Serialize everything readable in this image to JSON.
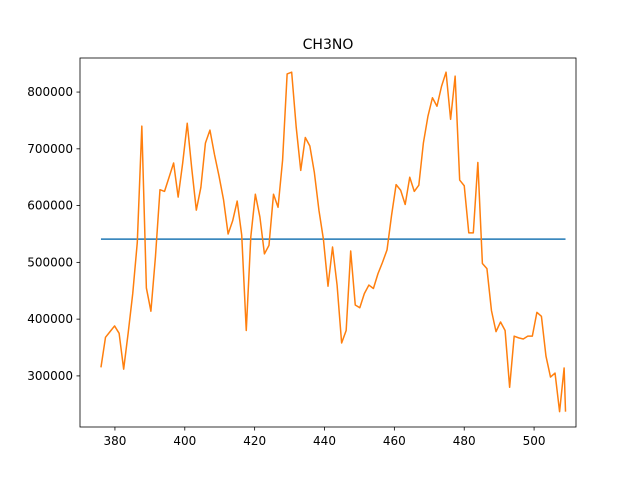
{
  "chart_data": {
    "type": "line",
    "title": "CH3NO",
    "xlabel": "",
    "ylabel": "",
    "xlim": [
      370,
      512
    ],
    "ylim": [
      210000,
      860000
    ],
    "x_ticks": [
      380,
      400,
      420,
      440,
      460,
      480,
      500
    ],
    "y_ticks": [
      300000,
      400000,
      500000,
      600000,
      700000,
      800000
    ],
    "x_tick_labels": [
      "380",
      "400",
      "420",
      "440",
      "460",
      "480",
      "500"
    ],
    "y_tick_labels": [
      "300000",
      "400000",
      "500000",
      "600000",
      "700000",
      "800000"
    ],
    "grid": false,
    "series": [
      {
        "color": "#1f77b4",
        "x": [
          376,
          509
        ],
        "y": [
          541000,
          541000
        ]
      },
      {
        "color": "#ff7f0e",
        "x": [
          376,
          377.3,
          378.6,
          379.9,
          381.2,
          382.5,
          383.8,
          385.1,
          386.4,
          387.7,
          389,
          390.3,
          391.6,
          392.9,
          394.2,
          395.5,
          396.8,
          398.1,
          399.4,
          400.7,
          402,
          403.3,
          404.6,
          405.9,
          407.2,
          408.5,
          409.8,
          411.1,
          412.4,
          413.7,
          415,
          416.3,
          417.6,
          418.9,
          420.2,
          421.5,
          422.8,
          424.1,
          425.4,
          426.7,
          428,
          429.3,
          430.6,
          431.9,
          433.2,
          434.5,
          435.8,
          437.1,
          438.4,
          439.7,
          441,
          442.3,
          443.6,
          444.9,
          446.2,
          447.5,
          448.8,
          450.1,
          451.4,
          452.7,
          454,
          455.3,
          456.6,
          457.9,
          459.2,
          460.5,
          461.8,
          463.1,
          464.4,
          465.7,
          467,
          468.3,
          469.6,
          470.9,
          472.2,
          473.5,
          474.8,
          476.1,
          477.4,
          478.7,
          480,
          481.3,
          482.6,
          483.9,
          485.2,
          486.5,
          487.8,
          489.1,
          490.4,
          491.7,
          493,
          494.3,
          495.6,
          496.9,
          498.2,
          499.5,
          500.8,
          502.1,
          503.4,
          504.7,
          506,
          507.3,
          508.6,
          509
        ],
        "y": [
          315000,
          368000,
          378000,
          388000,
          375000,
          312000,
          376000,
          445000,
          535000,
          740000,
          455000,
          414000,
          510000,
          628000,
          625000,
          650000,
          675000,
          615000,
          675000,
          745000,
          665000,
          592000,
          632000,
          710000,
          733000,
          690000,
          652000,
          610000,
          550000,
          573000,
          608000,
          548000,
          380000,
          545000,
          620000,
          580000,
          515000,
          530000,
          620000,
          597000,
          680000,
          832000,
          835000,
          738000,
          662000,
          720000,
          705000,
          658000,
          592000,
          540000,
          458000,
          527000,
          460000,
          358000,
          380000,
          520000,
          425000,
          420000,
          445000,
          460000,
          454000,
          480000,
          500000,
          522000,
          583000,
          637000,
          627000,
          602000,
          650000,
          625000,
          636000,
          710000,
          757000,
          790000,
          775000,
          810000,
          835000,
          752000,
          828000,
          645000,
          635000,
          552000,
          552000,
          676000,
          498000,
          489000,
          415000,
          378000,
          395000,
          380000,
          280000,
          370000,
          367000,
          365000,
          370000,
          370000,
          412000,
          405000,
          335000,
          298000,
          305000,
          237000,
          314000,
          237000
        ]
      }
    ]
  }
}
